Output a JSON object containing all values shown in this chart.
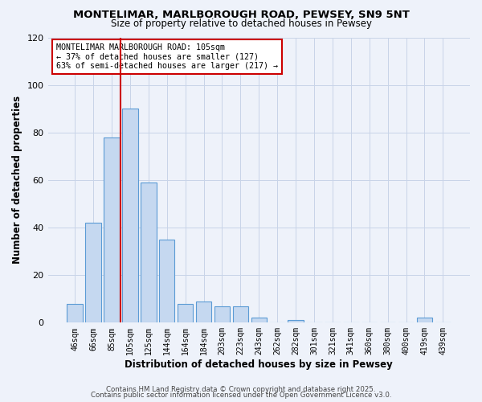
{
  "title": "MONTELIMAR, MARLBOROUGH ROAD, PEWSEY, SN9 5NT",
  "subtitle": "Size of property relative to detached houses in Pewsey",
  "xlabel": "Distribution of detached houses by size in Pewsey",
  "ylabel": "Number of detached properties",
  "categories": [
    "46sqm",
    "66sqm",
    "85sqm",
    "105sqm",
    "125sqm",
    "144sqm",
    "164sqm",
    "184sqm",
    "203sqm",
    "223sqm",
    "243sqm",
    "262sqm",
    "282sqm",
    "301sqm",
    "321sqm",
    "341sqm",
    "360sqm",
    "380sqm",
    "400sqm",
    "419sqm",
    "439sqm"
  ],
  "values": [
    8,
    42,
    78,
    90,
    59,
    35,
    8,
    9,
    7,
    7,
    2,
    0,
    1,
    0,
    0,
    0,
    0,
    0,
    0,
    2,
    0
  ],
  "bar_color": "#c5d8f0",
  "bar_edge_color": "#5b9bd5",
  "vline_index": 3,
  "vline_color": "#cc0000",
  "annotation_line1": "MONTELIMAR MARLBOROUGH ROAD: 105sqm",
  "annotation_line2": "← 37% of detached houses are smaller (127)",
  "annotation_line3": "63% of semi-detached houses are larger (217) →",
  "annotation_box_color": "#ffffff",
  "annotation_box_edge_color": "#cc0000",
  "ylim": [
    0,
    120
  ],
  "yticks": [
    0,
    20,
    40,
    60,
    80,
    100,
    120
  ],
  "grid_color": "#c8d4e8",
  "background_color": "#eef2fa",
  "footer1": "Contains HM Land Registry data © Crown copyright and database right 2025.",
  "footer2": "Contains public sector information licensed under the Open Government Licence v3.0."
}
